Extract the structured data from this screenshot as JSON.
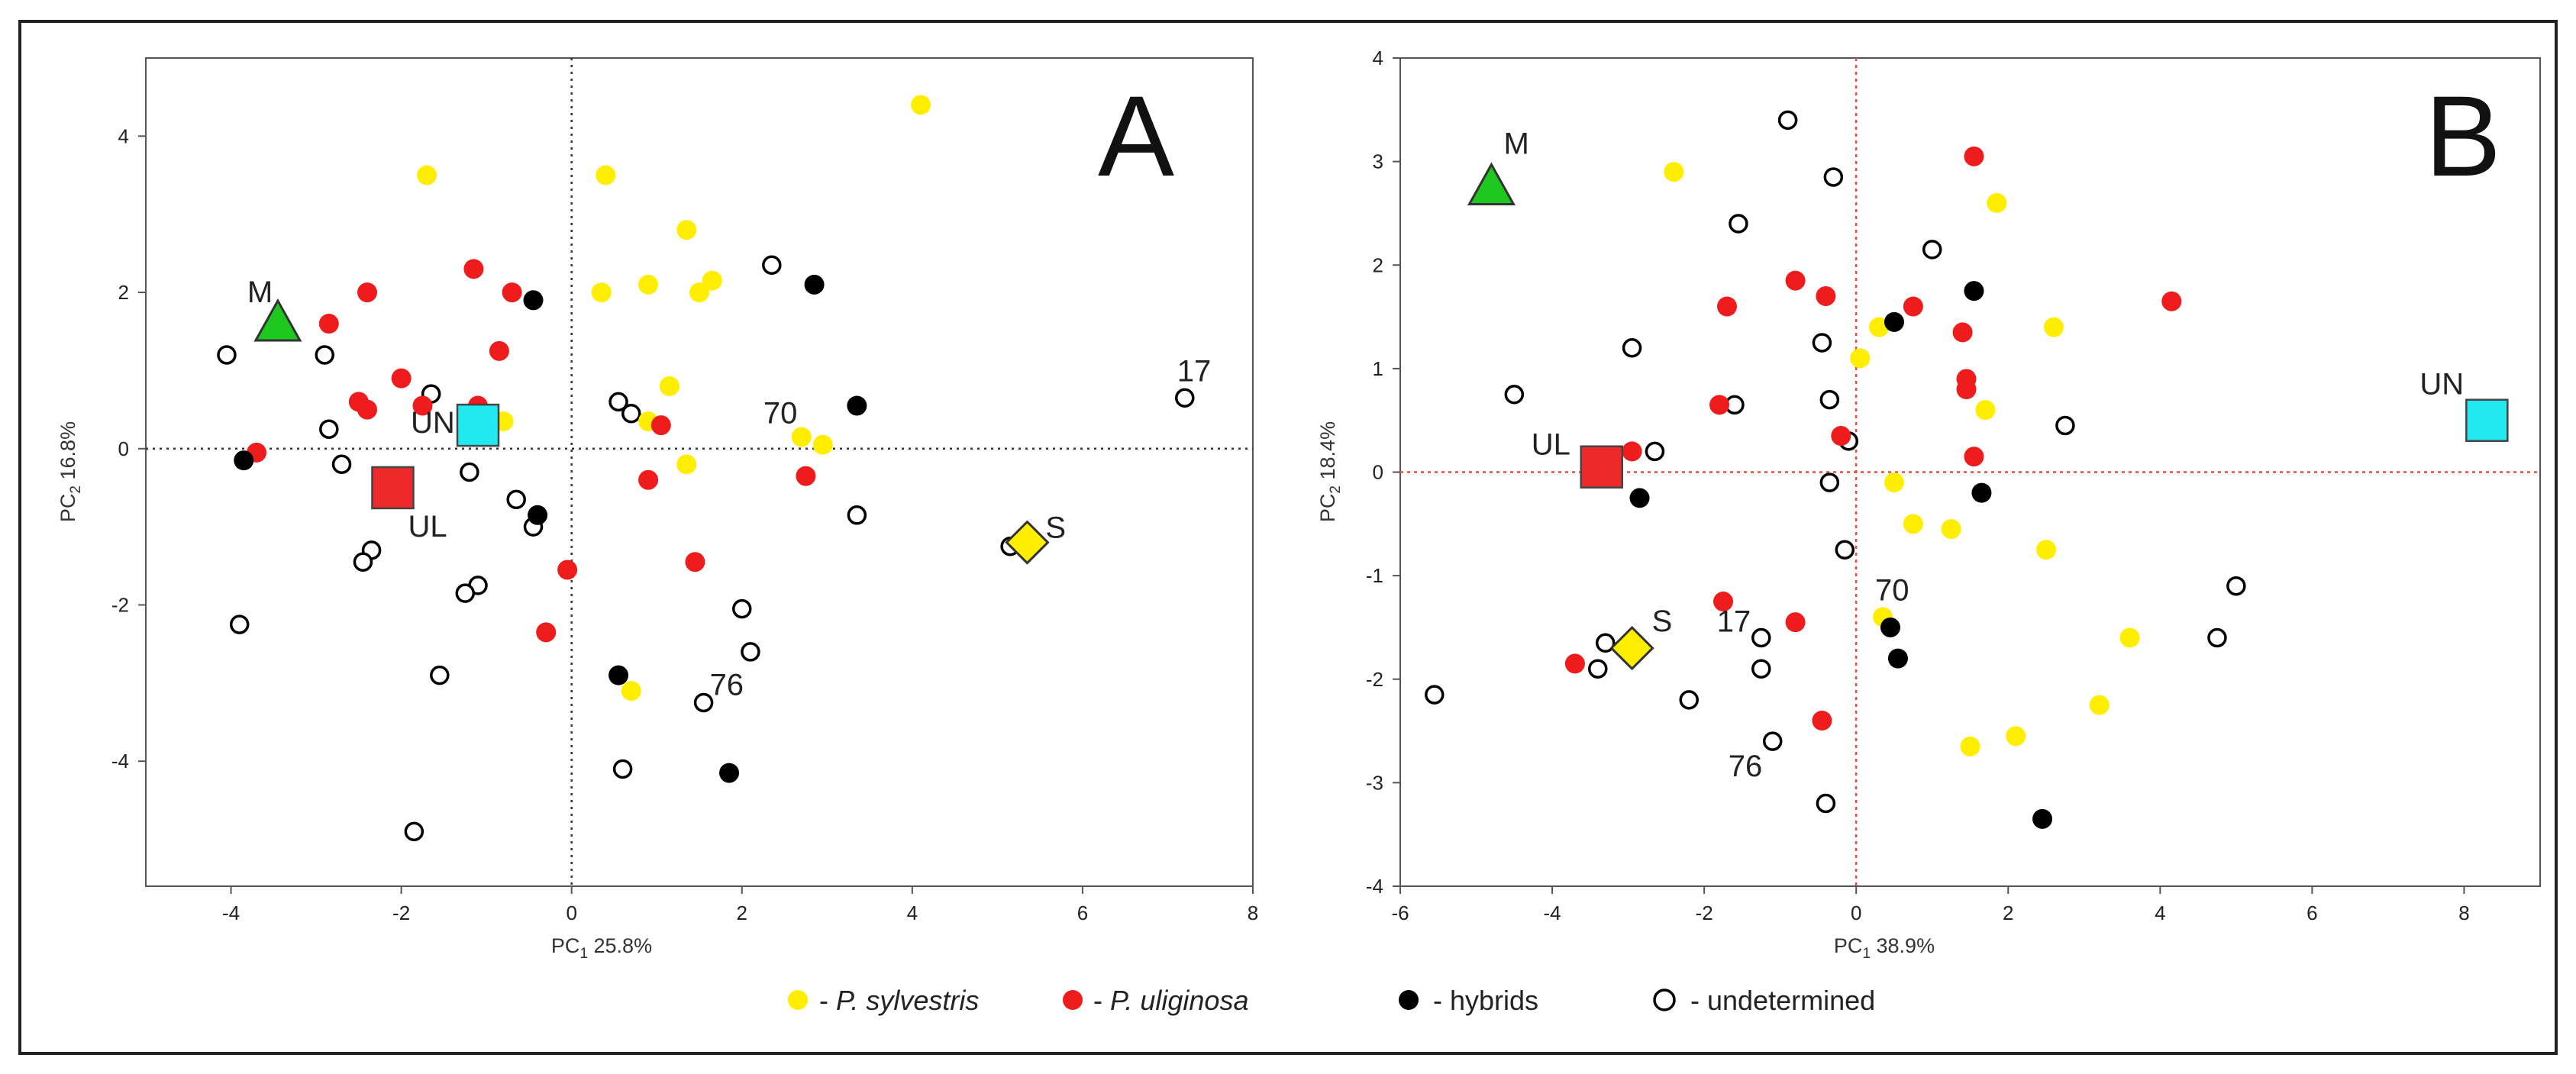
{
  "colors": {
    "sylvestris": "#ffee00",
    "uliginosa": "#ee1c1c",
    "hybrid": "#000000",
    "undetermined": "#ffffff",
    "M": "#1ec81e",
    "UN": "#22e8f0",
    "UL": "#ee2a2a",
    "S": "#ffee00"
  },
  "legend": {
    "sylvestris": {
      "prefix": "- ",
      "name": "P. sylvestris"
    },
    "uliginosa": {
      "prefix": "- ",
      "name": "P. uliginosa"
    },
    "hybrid": {
      "label": "- hybrids"
    },
    "undetermined": {
      "label": "- undetermined"
    }
  },
  "chart_data": [
    {
      "type": "scatter",
      "panel": "A",
      "xlabel_main": "PC",
      "xlabel_sub": "1",
      "xlabel_rest": " 25.8%",
      "ylabel_main": "PC",
      "ylabel_sub": "2",
      "ylabel_rest": " 16.8%",
      "xlim": [
        -5,
        8
      ],
      "ylim": [
        -5.6,
        5
      ],
      "xticks": [
        -4,
        -2,
        0,
        2,
        4,
        6,
        8
      ],
      "yticks": [
        -4,
        -2,
        0,
        2,
        4
      ],
      "reference_lines": {
        "x": 0,
        "y": 0,
        "style": "dotted black"
      },
      "groups": {
        "sylvestris": [
          [
            4.1,
            4.4
          ],
          [
            -1.7,
            3.5
          ],
          [
            0.4,
            3.5
          ],
          [
            1.35,
            2.8
          ],
          [
            0.9,
            2.1
          ],
          [
            0.35,
            2.0
          ],
          [
            1.5,
            2.0
          ],
          [
            1.65,
            2.15
          ],
          [
            1.15,
            0.8
          ],
          [
            0.9,
            0.35
          ],
          [
            -0.8,
            0.35
          ],
          [
            1.35,
            -0.2
          ],
          [
            2.7,
            0.15
          ],
          [
            2.95,
            0.05
          ],
          [
            0.7,
            -3.1
          ]
        ],
        "uliginosa": [
          [
            -2.4,
            2.0
          ],
          [
            -1.15,
            2.3
          ],
          [
            -0.7,
            2.0
          ],
          [
            -2.85,
            1.6
          ],
          [
            -2.0,
            0.9
          ],
          [
            -0.85,
            1.25
          ],
          [
            -2.5,
            0.6
          ],
          [
            -2.4,
            0.5
          ],
          [
            -1.75,
            0.55
          ],
          [
            -1.1,
            0.55
          ],
          [
            -3.7,
            -0.05
          ],
          [
            1.05,
            0.3
          ],
          [
            0.9,
            -0.4
          ],
          [
            2.75,
            -0.35
          ],
          [
            -0.05,
            -1.55
          ],
          [
            1.45,
            -1.45
          ],
          [
            -0.3,
            -2.35
          ]
        ],
        "hybrid": [
          [
            -0.45,
            1.9
          ],
          [
            2.85,
            2.1
          ],
          [
            3.35,
            0.55
          ],
          [
            -3.85,
            -0.15
          ],
          [
            -0.4,
            -0.85
          ],
          [
            0.55,
            -2.9
          ],
          [
            1.85,
            -4.15
          ]
        ],
        "undetermined": [
          [
            -4.05,
            1.2
          ],
          [
            -2.9,
            1.2
          ],
          [
            -1.65,
            0.7
          ],
          [
            -2.85,
            0.25
          ],
          [
            -2.7,
            -0.2
          ],
          [
            -1.2,
            -0.3
          ],
          [
            -0.65,
            -0.65
          ],
          [
            -0.45,
            -1.0
          ],
          [
            -2.35,
            -1.3
          ],
          [
            -2.45,
            -1.45
          ],
          [
            -1.1,
            -1.75
          ],
          [
            -1.25,
            -1.85
          ],
          [
            -3.9,
            -2.25
          ],
          [
            -1.55,
            -2.9
          ],
          [
            -1.85,
            -4.9
          ],
          [
            0.55,
            0.6
          ],
          [
            0.7,
            0.45
          ],
          [
            2.35,
            2.35
          ],
          [
            3.35,
            -0.85
          ],
          [
            5.15,
            -1.25
          ],
          [
            2.0,
            -2.05
          ],
          [
            2.1,
            -2.6
          ],
          [
            1.55,
            -3.25
          ],
          [
            0.6,
            -4.1
          ],
          [
            7.2,
            0.65
          ]
        ]
      },
      "specimens": [
        {
          "id": "M",
          "label": "M",
          "shape": "triangle",
          "x": -3.45,
          "y": 1.6
        },
        {
          "id": "UN",
          "label": "UN",
          "shape": "square",
          "x": -1.1,
          "y": 0.3
        },
        {
          "id": "UL",
          "label": "UL",
          "shape": "square",
          "x": -2.1,
          "y": -0.5
        },
        {
          "id": "S",
          "label": "S",
          "shape": "diamond",
          "x": 5.35,
          "y": -1.2
        }
      ],
      "annotations": [
        {
          "text": "17",
          "x": 7.2,
          "y": 0.65
        },
        {
          "text": "70",
          "x": 2.7,
          "y": 0.15
        },
        {
          "text": "76",
          "x": 1.55,
          "y": -3.25
        }
      ]
    },
    {
      "type": "scatter",
      "panel": "B",
      "xlabel_main": "PC",
      "xlabel_sub": "1",
      "xlabel_rest": " 38.9%",
      "ylabel_main": "PC",
      "ylabel_sub": "2",
      "ylabel_rest": " 18.4%",
      "xlim": [
        -6,
        9
      ],
      "ylim": [
        -4,
        4
      ],
      "xticks": [
        -6,
        -4,
        -2,
        0,
        2,
        4,
        6,
        8
      ],
      "yticks": [
        -4,
        -3,
        -2,
        -1,
        0,
        1,
        2,
        3,
        4
      ],
      "reference_lines": {
        "x": 0,
        "y": 0,
        "style": "dotted red"
      },
      "groups": {
        "sylvestris": [
          [
            -2.4,
            2.9
          ],
          [
            1.85,
            2.6
          ],
          [
            2.6,
            1.4
          ],
          [
            0.3,
            1.4
          ],
          [
            0.05,
            1.1
          ],
          [
            1.7,
            0.6
          ],
          [
            0.5,
            -0.1
          ],
          [
            0.75,
            -0.5
          ],
          [
            1.25,
            -0.55
          ],
          [
            2.5,
            -0.75
          ],
          [
            0.35,
            -1.4
          ],
          [
            3.6,
            -1.6
          ],
          [
            3.2,
            -2.25
          ],
          [
            1.5,
            -2.65
          ],
          [
            2.1,
            -2.55
          ]
        ],
        "uliginosa": [
          [
            1.55,
            3.05
          ],
          [
            -0.8,
            1.85
          ],
          [
            -0.4,
            1.7
          ],
          [
            -1.7,
            1.6
          ],
          [
            0.75,
            1.6
          ],
          [
            1.4,
            1.35
          ],
          [
            1.45,
            0.9
          ],
          [
            1.45,
            0.8
          ],
          [
            4.15,
            1.65
          ],
          [
            -1.8,
            0.65
          ],
          [
            -0.2,
            0.35
          ],
          [
            -2.95,
            0.2
          ],
          [
            1.55,
            0.15
          ],
          [
            -1.75,
            -1.25
          ],
          [
            -0.8,
            -1.45
          ],
          [
            -3.7,
            -1.85
          ],
          [
            -0.45,
            -2.4
          ]
        ],
        "hybrid": [
          [
            0.5,
            1.45
          ],
          [
            1.55,
            1.75
          ],
          [
            1.65,
            -0.2
          ],
          [
            -2.85,
            -0.25
          ],
          [
            0.45,
            -1.5
          ],
          [
            0.55,
            -1.8
          ],
          [
            2.45,
            -3.35
          ]
        ],
        "undetermined": [
          [
            -0.9,
            3.4
          ],
          [
            -0.3,
            2.85
          ],
          [
            -1.55,
            2.4
          ],
          [
            1.0,
            2.15
          ],
          [
            -2.95,
            1.2
          ],
          [
            -0.45,
            1.25
          ],
          [
            -4.5,
            0.75
          ],
          [
            -1.6,
            0.65
          ],
          [
            -0.35,
            0.7
          ],
          [
            -2.65,
            0.2
          ],
          [
            -0.1,
            0.3
          ],
          [
            2.75,
            0.45
          ],
          [
            -0.35,
            -0.1
          ],
          [
            -0.15,
            -0.75
          ],
          [
            -3.3,
            -1.65
          ],
          [
            -3.4,
            -1.9
          ],
          [
            -1.25,
            -1.6
          ],
          [
            -1.25,
            -1.9
          ],
          [
            -2.2,
            -2.2
          ],
          [
            -1.1,
            -2.6
          ],
          [
            -0.4,
            -3.2
          ],
          [
            -5.55,
            -2.15
          ],
          [
            4.75,
            -1.6
          ],
          [
            5.0,
            -1.1
          ]
        ]
      },
      "specimens": [
        {
          "id": "M",
          "label": "M",
          "shape": "triangle",
          "x": -4.8,
          "y": 2.75
        },
        {
          "id": "UN",
          "label": "UN",
          "shape": "square",
          "x": 8.3,
          "y": 0.5
        },
        {
          "id": "UL",
          "label": "UL",
          "shape": "square",
          "x": -3.35,
          "y": 0.05
        },
        {
          "id": "S",
          "label": "S",
          "shape": "diamond",
          "x": -2.95,
          "y": -1.7
        }
      ],
      "annotations": [
        {
          "text": "70",
          "x": 0.35,
          "y": -1.4
        },
        {
          "text": "17",
          "x": -1.25,
          "y": -1.6
        },
        {
          "text": "76",
          "x": -1.1,
          "y": -2.6
        }
      ]
    }
  ]
}
